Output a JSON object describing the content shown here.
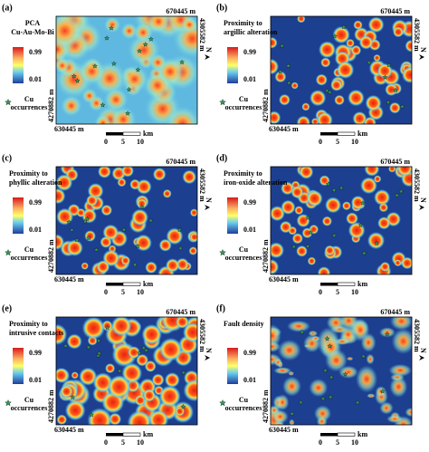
{
  "panels": [
    {
      "label": "(a)",
      "title": [
        "PCA",
        "Cu-Au-Mo-Bi"
      ],
      "legend_max": "0.99",
      "legend_min": "0.01",
      "marker_label": [
        "Cu",
        "occurrences"
      ],
      "coords": {
        "top_right": "670445 m",
        "right": "4305582 m",
        "left": "4270882 m",
        "bottom_left": "630445 m"
      },
      "scale": {
        "ticks": [
          "0",
          "5",
          "10"
        ],
        "unit": "km"
      },
      "north": "N"
    },
    {
      "label": "(b)",
      "title": [
        "Proximity to",
        "argillic alteration"
      ],
      "legend_max": "0.99",
      "legend_min": "0.01",
      "marker_label": [
        "Cu",
        "occurrences"
      ],
      "coords": {
        "top_right": "670445 m",
        "right": "4305582 m",
        "left": "4270882 m",
        "bottom_left": "630445 m"
      },
      "scale": {
        "ticks": [
          "0",
          "5",
          "10"
        ],
        "unit": "km"
      },
      "north": "N"
    },
    {
      "label": "(c)",
      "title": [
        "Proximity to",
        "phyllic alteration"
      ],
      "legend_max": "0.99",
      "legend_min": "0.01",
      "marker_label": [
        "Cu",
        "occurrences"
      ],
      "coords": {
        "top_right": "670445 m",
        "right": "4305582 m",
        "left": "4270882 m",
        "bottom_left": "630445 m"
      },
      "scale": {
        "ticks": [
          "0",
          "5",
          "10"
        ],
        "unit": "km"
      },
      "north": "N"
    },
    {
      "label": "(d)",
      "title": [
        "Proximity to",
        "iron-oxide alteration"
      ],
      "legend_max": "0.99",
      "legend_min": "0.01",
      "marker_label": [
        "Cu",
        "occurrences"
      ],
      "coords": {
        "top_right": "670445 m",
        "right": "4305582 m",
        "left": "4270882 m",
        "bottom_left": "630445 m"
      },
      "scale": {
        "ticks": [
          "0",
          "5",
          "10"
        ],
        "unit": "km"
      },
      "north": "N"
    },
    {
      "label": "(e)",
      "title": [
        "Proximity to",
        "intrusive contacts"
      ],
      "legend_max": "0.99",
      "legend_min": "0.01",
      "marker_label": [
        "Cu",
        "occurrences"
      ],
      "coords": {
        "top_right": "670445 m",
        "right": "4305582 m",
        "left": "4270882 m",
        "bottom_left": "630445 m"
      },
      "scale": {
        "ticks": [
          "0",
          "5",
          "10"
        ],
        "unit": "km"
      },
      "north": "N"
    },
    {
      "label": "(f)",
      "title": [
        "Fault density"
      ],
      "legend_max": "0.99",
      "legend_min": "0.01",
      "marker_label": [
        "Cu",
        "occurrences"
      ],
      "coords": {
        "top_right": "670445 m",
        "right": "4305582 m",
        "left": "4270882 m",
        "bottom_left": "630445 m"
      },
      "scale": {
        "ticks": [
          "0",
          "5",
          "10"
        ],
        "unit": "km"
      },
      "north": "N"
    }
  ]
}
